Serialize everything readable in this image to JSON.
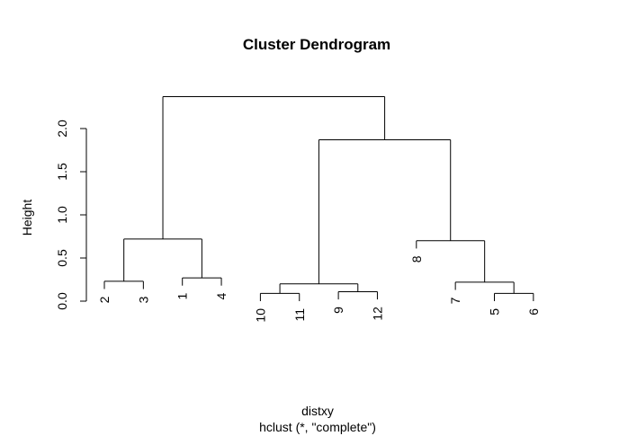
{
  "chart_data": {
    "type": "dendrogram",
    "title": "Cluster Dendrogram",
    "xlabel": "distxy",
    "subtitle": "hclust (*, \"complete\")",
    "ylabel": "Height",
    "ylim": [
      0,
      2.4
    ],
    "y_ticks": [
      0.0,
      0.5,
      1.0,
      1.5,
      2.0
    ],
    "y_tick_labels": [
      "0.0",
      "0.5",
      "1.0",
      "1.5",
      "2.0"
    ],
    "leaf_order": [
      "2",
      "3",
      "1",
      "4",
      "10",
      "11",
      "9",
      "12",
      "8",
      "7",
      "5",
      "6"
    ],
    "merges": [
      {
        "left": "leaf:2",
        "right": "leaf:3",
        "height": 0.23
      },
      {
        "left": "leaf:1",
        "right": "leaf:4",
        "height": 0.27
      },
      {
        "left": "node:0",
        "right": "node:1",
        "height": 0.72
      },
      {
        "left": "leaf:10",
        "right": "leaf:11",
        "height": 0.09
      },
      {
        "left": "leaf:9",
        "right": "leaf:12",
        "height": 0.11
      },
      {
        "left": "node:3",
        "right": "node:4",
        "height": 0.2
      },
      {
        "left": "leaf:5",
        "right": "leaf:6",
        "height": 0.09
      },
      {
        "left": "leaf:7",
        "right": "node:6",
        "height": 0.22
      },
      {
        "left": "leaf:8",
        "right": "node:7",
        "height": 0.7
      },
      {
        "left": "node:5",
        "right": "node:8",
        "height": 1.87
      },
      {
        "left": "node:2",
        "right": "node:9",
        "height": 2.37
      }
    ]
  }
}
